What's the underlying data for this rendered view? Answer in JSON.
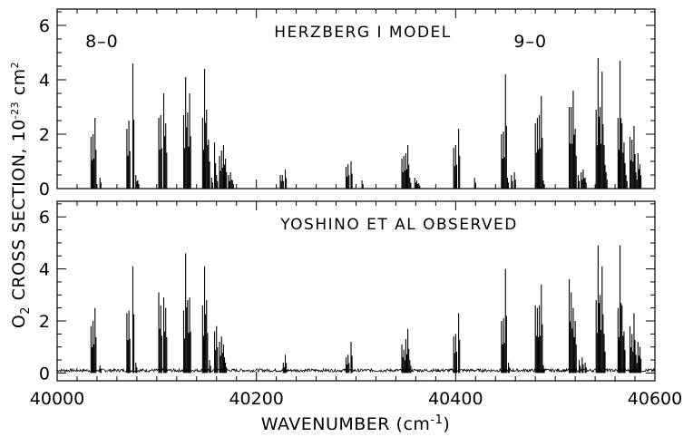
{
  "chart_data": {
    "type": "line",
    "xlabel_main": "WAVENUMBER (cm",
    "xlabel_sup": "-1",
    "xlabel_close": ")",
    "ylabel_main": "O",
    "ylabel_sub": "2",
    "ylabel_mid": " CROSS SECTION, 10",
    "ylabel_sup": "-23",
    "ylabel_unit": " cm",
    "ylabel_sup2": "2",
    "xlim": [
      40000,
      40600
    ],
    "x_ticks": [
      40000,
      40200,
      40400,
      40600
    ],
    "x_tick_labels": [
      "40000",
      "40200",
      "40400",
      "40600"
    ],
    "panels": [
      {
        "title": "HERZBERG I MODEL",
        "ylim": [
          0,
          6.6
        ],
        "y_ticks": [
          0,
          2,
          4,
          6
        ],
        "y_tick_labels": [
          "0",
          "2",
          "4",
          "6"
        ],
        "band_labels": [
          {
            "text": "8–0",
            "x": 40045,
            "y": 5.2
          },
          {
            "text": "9–0",
            "x": 40475,
            "y": 5.2
          }
        ],
        "noise": false,
        "lines": [
          [
            40034,
            1.9
          ],
          [
            40036,
            2.0
          ],
          [
            40038,
            2.6
          ],
          [
            40043,
            0.4
          ],
          [
            40070,
            2.2
          ],
          [
            40072,
            2.5
          ],
          [
            40076,
            4.6
          ],
          [
            40079,
            0.5
          ],
          [
            40081,
            0.3
          ],
          [
            40102,
            2.6
          ],
          [
            40104,
            2.7
          ],
          [
            40107,
            3.5
          ],
          [
            40109,
            2.4
          ],
          [
            40127,
            2.7
          ],
          [
            40129,
            4.1
          ],
          [
            40131,
            2.8
          ],
          [
            40133,
            3.5
          ],
          [
            40146,
            2.6
          ],
          [
            40148,
            4.4
          ],
          [
            40150,
            2.9
          ],
          [
            40152,
            1.8
          ],
          [
            40155,
            0.4
          ],
          [
            40158,
            1.7
          ],
          [
            40160,
            0.5
          ],
          [
            40163,
            1.2
          ],
          [
            40165,
            1.4
          ],
          [
            40167,
            1.6
          ],
          [
            40169,
            1.1
          ],
          [
            40172,
            0.5
          ],
          [
            40174,
            0.6
          ],
          [
            40176,
            0.3
          ],
          [
            40224,
            0.5
          ],
          [
            40226,
            0.5
          ],
          [
            40229,
            0.7
          ],
          [
            40290,
            0.8
          ],
          [
            40292,
            0.9
          ],
          [
            40295,
            1.0
          ],
          [
            40306,
            0.3
          ],
          [
            40346,
            1.1
          ],
          [
            40348,
            1.2
          ],
          [
            40350,
            1.3
          ],
          [
            40352,
            1.6
          ],
          [
            40354,
            0.4
          ],
          [
            40359,
            0.4
          ],
          [
            40361,
            0.3
          ],
          [
            40363,
            0.2
          ],
          [
            40398,
            1.5
          ],
          [
            40400,
            1.6
          ],
          [
            40403,
            2.2
          ],
          [
            40419,
            0.4
          ],
          [
            40446,
            2.0
          ],
          [
            40448,
            2.1
          ],
          [
            40450,
            4.2
          ],
          [
            40452,
            0.4
          ],
          [
            40456,
            0.5
          ],
          [
            40459,
            0.6
          ],
          [
            40480,
            2.4
          ],
          [
            40482,
            2.6
          ],
          [
            40484,
            2.7
          ],
          [
            40486,
            3.4
          ],
          [
            40488,
            0.3
          ],
          [
            40514,
            3.0
          ],
          [
            40516,
            3.0
          ],
          [
            40518,
            3.6
          ],
          [
            40520,
            2.2
          ],
          [
            40523,
            0.5
          ],
          [
            40526,
            0.6
          ],
          [
            40528,
            0.7
          ],
          [
            40530,
            0.4
          ],
          [
            40541,
            2.9
          ],
          [
            40543,
            4.8
          ],
          [
            40545,
            3.0
          ],
          [
            40547,
            4.3
          ],
          [
            40549,
            1.6
          ],
          [
            40551,
            0.6
          ],
          [
            40563,
            2.6
          ],
          [
            40565,
            4.7
          ],
          [
            40567,
            2.4
          ],
          [
            40569,
            1.7
          ],
          [
            40571,
            0.5
          ],
          [
            40575,
            1.9
          ],
          [
            40577,
            1.8
          ],
          [
            40579,
            2.3
          ],
          [
            40581,
            0.6
          ],
          [
            40583,
            1.3
          ],
          [
            40585,
            0.9
          ]
        ]
      },
      {
        "title": "YOSHINO ET AL OBSERVED",
        "ylim": [
          -0.3,
          6.6
        ],
        "y_ticks": [
          0,
          2,
          4,
          6
        ],
        "y_tick_labels": [
          "0",
          "2",
          "4",
          "6"
        ],
        "band_labels": [],
        "noise": true,
        "lines": [
          [
            40034,
            1.8
          ],
          [
            40036,
            2.0
          ],
          [
            40038,
            2.5
          ],
          [
            40043,
            0.3
          ],
          [
            40070,
            2.3
          ],
          [
            40072,
            2.4
          ],
          [
            40076,
            4.1
          ],
          [
            40079,
            0.4
          ],
          [
            40102,
            3.1
          ],
          [
            40104,
            2.6
          ],
          [
            40107,
            2.9
          ],
          [
            40109,
            2.5
          ],
          [
            40127,
            2.4
          ],
          [
            40129,
            4.6
          ],
          [
            40131,
            2.8
          ],
          [
            40133,
            2.9
          ],
          [
            40146,
            2.6
          ],
          [
            40148,
            4.1
          ],
          [
            40150,
            2.8
          ],
          [
            40153,
            0.5
          ],
          [
            40158,
            1.6
          ],
          [
            40160,
            1.8
          ],
          [
            40163,
            1.2
          ],
          [
            40165,
            1.4
          ],
          [
            40167,
            1.1
          ],
          [
            40169,
            0.4
          ],
          [
            40227,
            0.4
          ],
          [
            40229,
            0.7
          ],
          [
            40290,
            0.6
          ],
          [
            40292,
            0.7
          ],
          [
            40295,
            1.2
          ],
          [
            40346,
            1.1
          ],
          [
            40348,
            0.9
          ],
          [
            40350,
            1.3
          ],
          [
            40352,
            1.7
          ],
          [
            40354,
            0.5
          ],
          [
            40398,
            1.4
          ],
          [
            40400,
            1.5
          ],
          [
            40403,
            2.3
          ],
          [
            40446,
            2.0
          ],
          [
            40448,
            2.1
          ],
          [
            40450,
            4.0
          ],
          [
            40453,
            0.4
          ],
          [
            40480,
            2.6
          ],
          [
            40482,
            2.5
          ],
          [
            40484,
            2.6
          ],
          [
            40486,
            3.4
          ],
          [
            40488,
            0.3
          ],
          [
            40514,
            3.6
          ],
          [
            40516,
            3.1
          ],
          [
            40518,
            2.5
          ],
          [
            40520,
            2.0
          ],
          [
            40524,
            0.5
          ],
          [
            40527,
            0.6
          ],
          [
            40530,
            0.4
          ],
          [
            40541,
            2.8
          ],
          [
            40543,
            4.9
          ],
          [
            40545,
            3.0
          ],
          [
            40547,
            4.1
          ],
          [
            40549,
            1.5
          ],
          [
            40563,
            2.5
          ],
          [
            40565,
            4.9
          ],
          [
            40567,
            2.6
          ],
          [
            40569,
            1.6
          ],
          [
            40575,
            1.8
          ],
          [
            40577,
            1.5
          ],
          [
            40579,
            2.3
          ],
          [
            40581,
            0.7
          ],
          [
            40583,
            1.2
          ],
          [
            40585,
            1.0
          ]
        ]
      }
    ]
  }
}
